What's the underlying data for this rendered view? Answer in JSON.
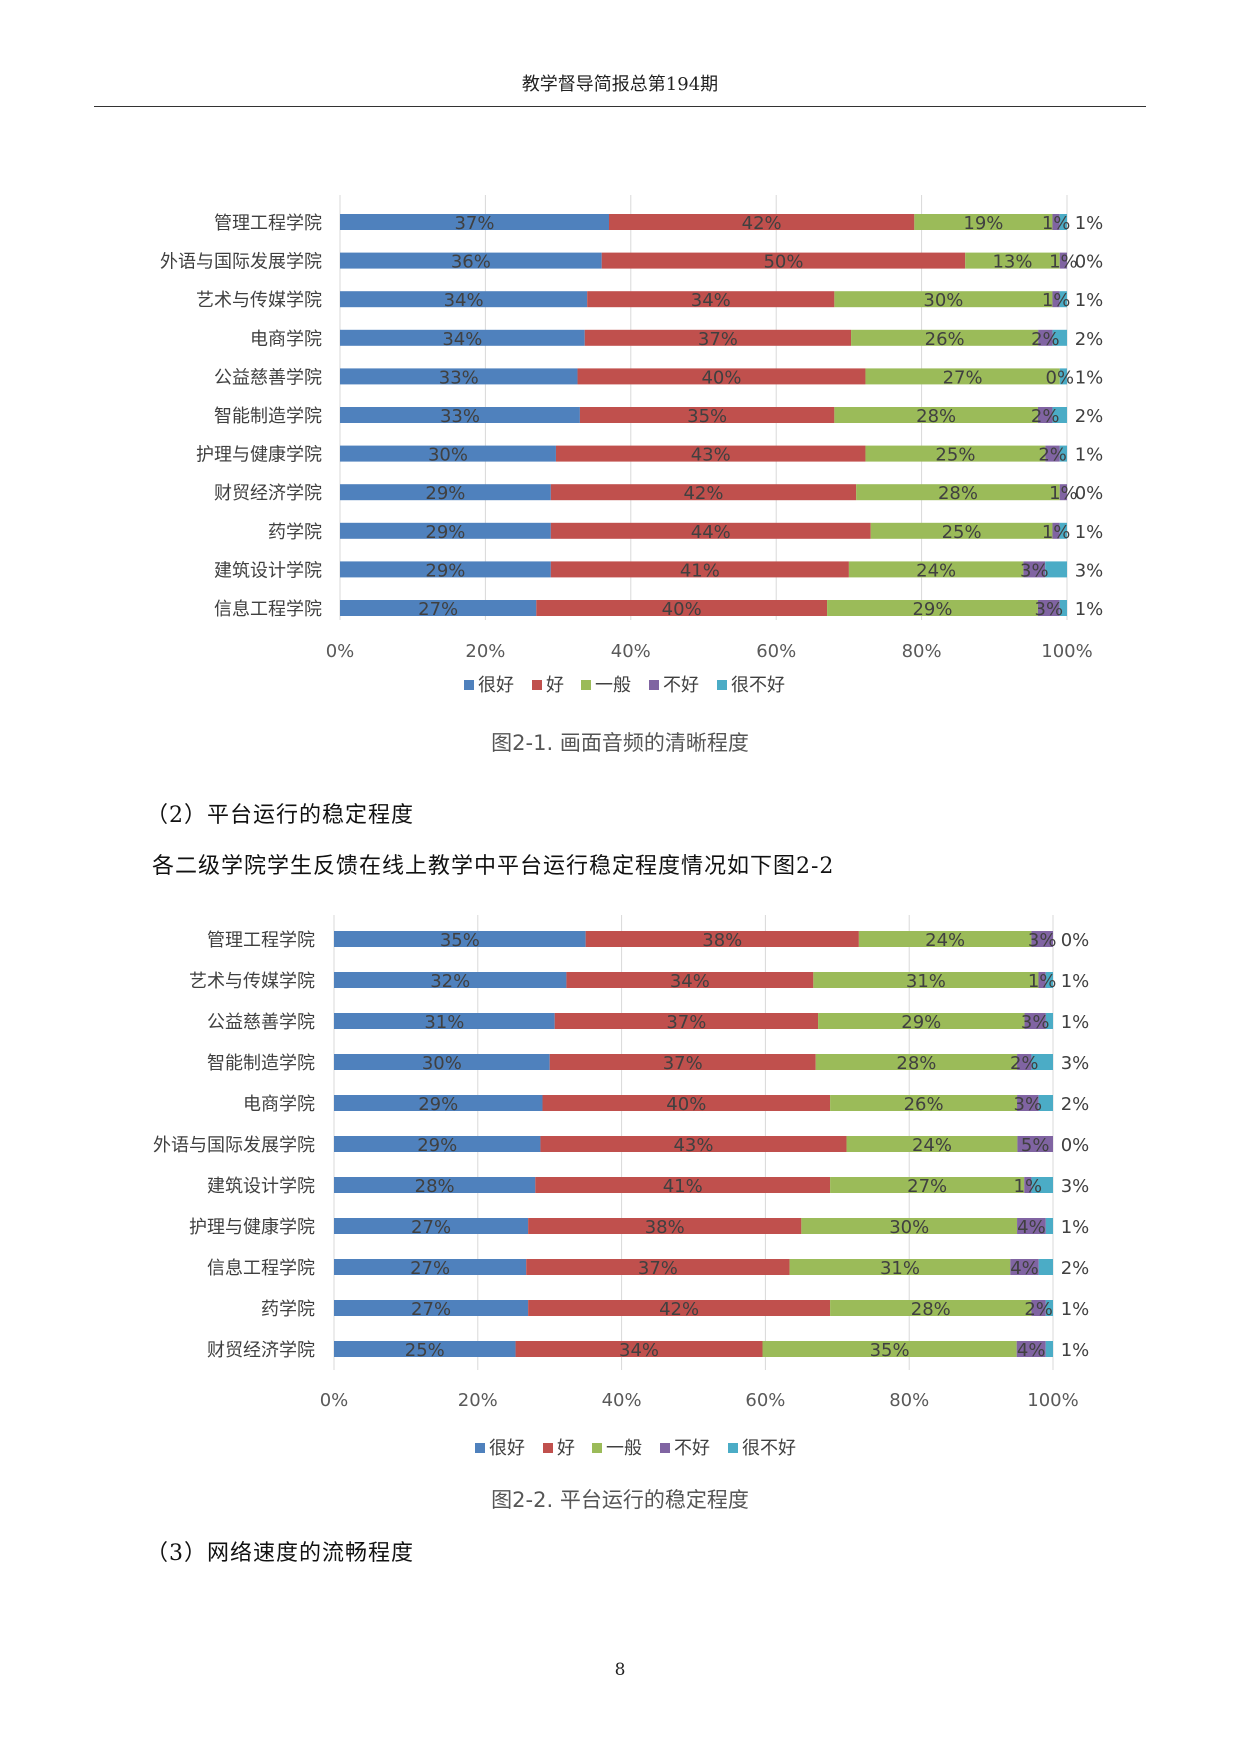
{
  "header": {
    "title": "教学督导简报总第194期"
  },
  "section2": {
    "heading": "（2）平台运行的稳定程度",
    "intro": "各二级学院学生反馈在线上教学中平台运行稳定程度情况如下图2-2"
  },
  "section3": {
    "heading": "（3）网络速度的流畅程度"
  },
  "page_number": "8",
  "colors": {
    "很好": "#4f81bd",
    "好": "#c0504d",
    "一般": "#9bbb59",
    "不好": "#8064a2",
    "很不好": "#4bacc6"
  },
  "chart_data": [
    {
      "type": "bar",
      "orientation": "horizontal-stacked-100",
      "title": "图2-1. 画面音频的清晰程度",
      "categories": [
        "管理工程学院",
        "外语与国际发展学院",
        "艺术与传媒学院",
        "电商学院",
        "公益慈善学院",
        "智能制造学院",
        "护理与健康学院",
        "财贸经济学院",
        "药学院",
        "建筑设计学院",
        "信息工程学院"
      ],
      "series": [
        {
          "name": "很好",
          "values": [
            37,
            36,
            34,
            34,
            33,
            33,
            30,
            29,
            29,
            29,
            27
          ]
        },
        {
          "name": "好",
          "values": [
            42,
            50,
            34,
            37,
            40,
            35,
            43,
            42,
            44,
            41,
            40
          ]
        },
        {
          "name": "一般",
          "values": [
            19,
            13,
            30,
            26,
            27,
            28,
            25,
            28,
            25,
            24,
            29
          ]
        },
        {
          "name": "不好",
          "values": [
            1,
            1,
            1,
            2,
            0,
            2,
            2,
            1,
            1,
            3,
            3
          ]
        },
        {
          "name": "很不好",
          "values": [
            1,
            0,
            1,
            2,
            1,
            2,
            1,
            0,
            1,
            3,
            1
          ]
        }
      ],
      "xticks": [
        "0%",
        "20%",
        "40%",
        "60%",
        "80%",
        "100%"
      ],
      "xlim": [
        0,
        100
      ],
      "grid": true,
      "legend": "bottom"
    },
    {
      "type": "bar",
      "orientation": "horizontal-stacked-100",
      "title": "图2-2. 平台运行的稳定程度",
      "categories": [
        "管理工程学院",
        "艺术与传媒学院",
        "公益慈善学院",
        "智能制造学院",
        "电商学院",
        "外语与国际发展学院",
        "建筑设计学院",
        "护理与健康学院",
        "信息工程学院",
        "药学院",
        "财贸经济学院"
      ],
      "series": [
        {
          "name": "很好",
          "values": [
            35,
            32,
            31,
            30,
            29,
            29,
            28,
            27,
            27,
            27,
            25
          ]
        },
        {
          "name": "好",
          "values": [
            38,
            34,
            37,
            37,
            40,
            43,
            41,
            38,
            37,
            42,
            34
          ]
        },
        {
          "name": "一般",
          "values": [
            24,
            31,
            29,
            28,
            26,
            24,
            27,
            30,
            31,
            28,
            35
          ]
        },
        {
          "name": "不好",
          "values": [
            3,
            1,
            3,
            2,
            3,
            5,
            1,
            4,
            4,
            2,
            4
          ]
        },
        {
          "name": "很不好",
          "values": [
            0,
            1,
            1,
            3,
            2,
            0,
            3,
            1,
            2,
            1,
            1
          ]
        }
      ],
      "xticks": [
        "0%",
        "20%",
        "40%",
        "60%",
        "80%",
        "100%"
      ],
      "xlim": [
        0,
        100
      ],
      "grid": true,
      "legend": "bottom"
    }
  ]
}
